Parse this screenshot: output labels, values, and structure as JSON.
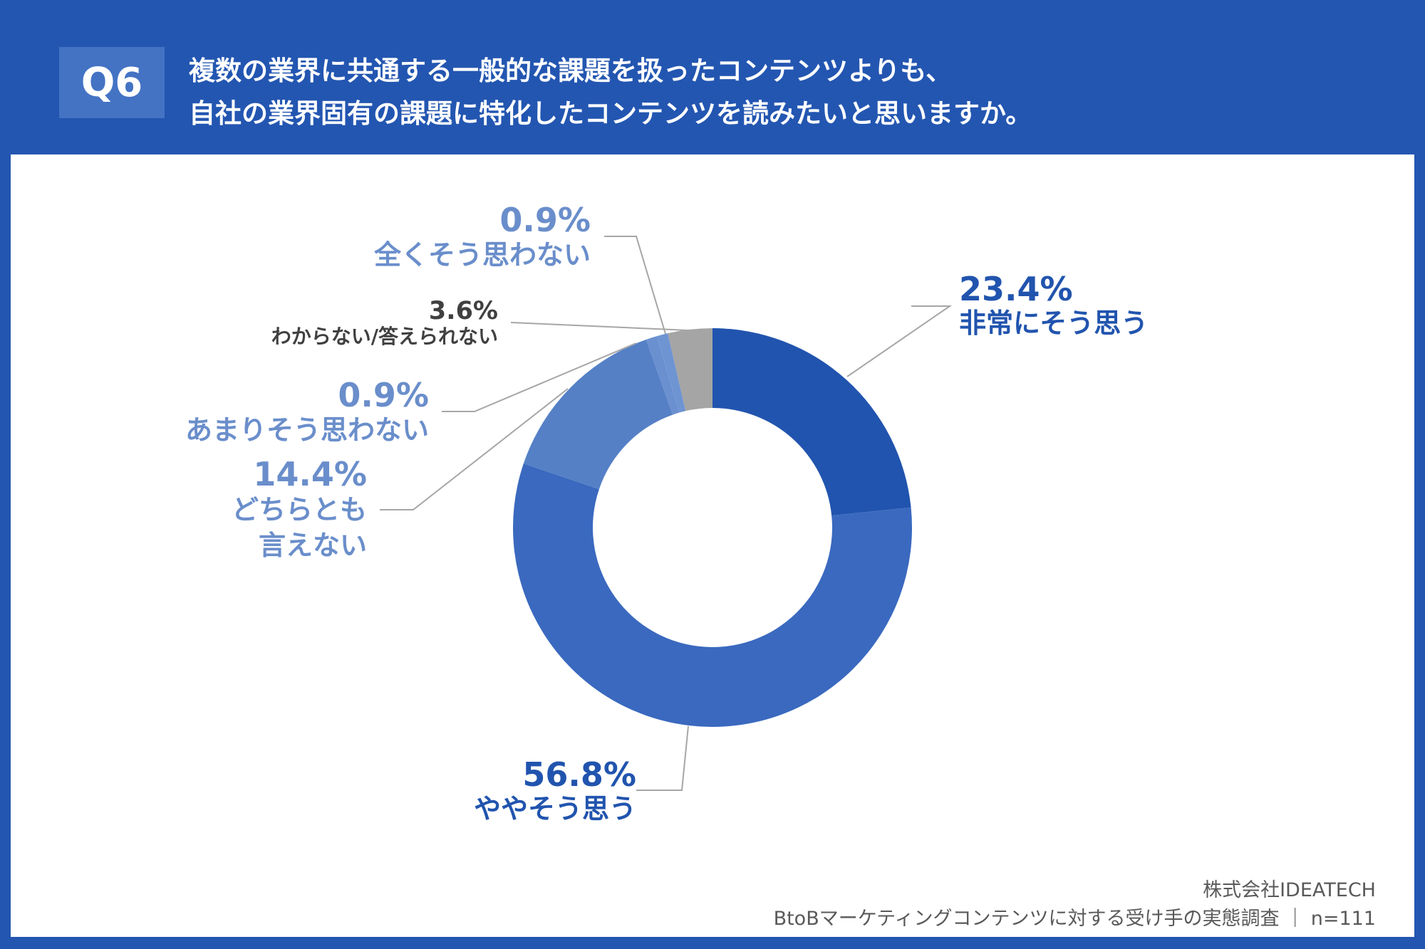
{
  "header": {
    "badge": "Q6",
    "title_line1": "複数の業界に共通する一般的な課題を扱ったコンテンツよりも、",
    "title_line2": "自社の業界固有の課題に特化したコンテンツを読みたいと思いますか。"
  },
  "chart_data": {
    "type": "donut",
    "start": "top, clockwise",
    "slices": [
      {
        "label": "非常にそう思う",
        "value": 23.4,
        "value_label": "23.4%",
        "color": "#2154ae"
      },
      {
        "label": "ややそう思う",
        "value": 56.8,
        "value_label": "56.8%",
        "color": "#3a69bf"
      },
      {
        "label": "どちらとも言えない",
        "label_lines": [
          "どちらとも",
          "言えない"
        ],
        "value": 14.4,
        "value_label": "14.4%",
        "color": "#5580c6"
      },
      {
        "label": "あまりそう思わない",
        "value": 0.9,
        "value_label": "0.9%",
        "color": "#6b90d0"
      },
      {
        "label": "全くそう思わない",
        "value": 0.9,
        "value_label": "0.9%",
        "color": "#6f94d2"
      },
      {
        "label": "わからない/答えられない",
        "value": 3.6,
        "value_label": "3.6%",
        "color": "#a5a5a5"
      }
    ]
  },
  "footer": {
    "company": "株式会社IDEATECH",
    "survey": "BtoBマーケティングコンテンツに対する受け手の実態調査 ｜ n=111"
  }
}
